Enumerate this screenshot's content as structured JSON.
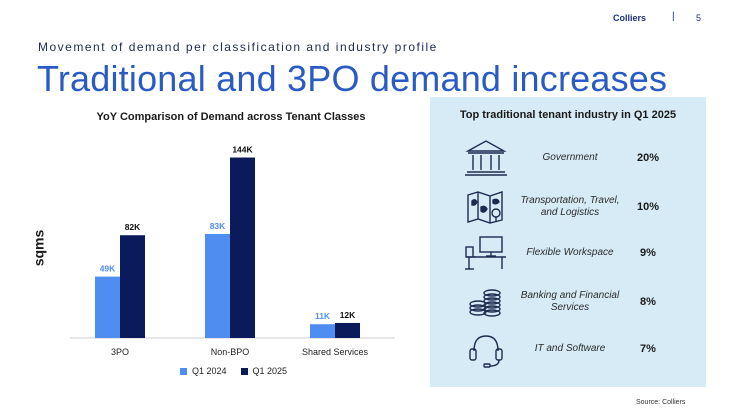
{
  "header": {
    "brand": "Colliers",
    "separator": "|",
    "page_number": "5"
  },
  "subtitle": "Movement of demand per classification and industry profile",
  "title": "Traditional and 3PO demand increases",
  "chart_data": {
    "type": "bar",
    "title": "YoY Comparison of Demand across Tenant Classes",
    "ylabel": "sqms",
    "xlabel": "",
    "categories": [
      "3PO",
      "Non-BPO",
      "Shared Services"
    ],
    "series": [
      {
        "name": "Q1 2024",
        "values": [
          49,
          83,
          11
        ],
        "labels": [
          "49K",
          "83K",
          "11K"
        ],
        "color": "#4f8ef0"
      },
      {
        "name": "Q1 2025",
        "values": [
          82,
          144,
          12
        ],
        "labels": [
          "82K",
          "144K",
          "12K"
        ],
        "color": "#0b1a5a"
      }
    ],
    "unit": "K sqms",
    "ylim": [
      0,
      150
    ],
    "grid": false,
    "legend_position": "bottom"
  },
  "panel": {
    "title": "Top traditional tenant industry in Q1 2025",
    "background": "#d6ebf6",
    "items": [
      {
        "icon": "government-building-icon",
        "label": "Government",
        "percent": "20%"
      },
      {
        "icon": "travel-map-icon",
        "label": "Transportation, Travel, and Logistics",
        "percent": "10%"
      },
      {
        "icon": "office-desk-icon",
        "label": "Flexible Workspace",
        "percent": "9%"
      },
      {
        "icon": "coins-stack-icon",
        "label": "Banking and Financial Services",
        "percent": "8%"
      },
      {
        "icon": "headset-icon",
        "label": "IT and Software",
        "percent": "7%"
      }
    ]
  },
  "source": "Source: Colliers"
}
